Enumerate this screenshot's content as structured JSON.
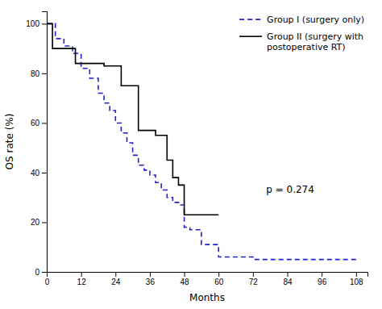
{
  "chart_data": {
    "type": "line",
    "x_label": "Months",
    "y_label": "OS rate (%)",
    "series": [
      {
        "name": "Group I (surgery only)",
        "color": "#2222CC",
        "line_style": "dashed",
        "x": [
          0,
          0,
          3,
          3,
          6,
          6,
          9,
          9,
          12,
          12,
          15,
          15,
          18,
          18,
          20,
          20,
          22,
          22,
          24,
          24,
          26,
          26,
          28,
          28,
          30,
          30,
          32,
          32,
          34,
          34,
          36,
          36,
          38,
          38,
          40,
          40,
          42,
          42,
          44,
          44,
          46,
          46,
          48,
          48,
          50,
          50,
          54,
          54,
          60,
          60,
          72,
          72,
          84,
          84,
          96,
          96,
          108
        ],
        "values": [
          100,
          100,
          100,
          94,
          94,
          91,
          91,
          88,
          88,
          82,
          82,
          78,
          78,
          72,
          72,
          68,
          68,
          65,
          65,
          60,
          60,
          56,
          56,
          52,
          52,
          47,
          47,
          43,
          43,
          41,
          41,
          39,
          39,
          36,
          36,
          33,
          33,
          30,
          30,
          28,
          28,
          27,
          27,
          18,
          18,
          17,
          17,
          11,
          11,
          6,
          6,
          5,
          5,
          5,
          5,
          5,
          5
        ]
      },
      {
        "name": "Group II (surgery with\npostoperative RT)",
        "color": "#000000",
        "line_style": "solid",
        "x": [
          0,
          0,
          2,
          2,
          10,
          10,
          20,
          20,
          26,
          26,
          32,
          32,
          38,
          38,
          42,
          42,
          44,
          44,
          46,
          46,
          48,
          48,
          60,
          60
        ],
        "values": [
          100,
          100,
          100,
          90,
          90,
          84,
          84,
          83,
          83,
          75,
          75,
          57,
          57,
          55,
          55,
          45,
          45,
          38,
          38,
          35,
          35,
          23,
          23,
          23
        ]
      }
    ],
    "annotations": [
      {
        "text": "p = 0.274",
        "x": 85,
        "y": 33
      }
    ],
    "xlim": [
      0,
      112
    ],
    "ylim": [
      0,
      105
    ],
    "xticks": [
      0,
      12,
      24,
      36,
      48,
      60,
      72,
      84,
      96,
      108
    ],
    "yticks": [
      0,
      20,
      40,
      60,
      80,
      100
    ],
    "legend": "upper right",
    "grid": false
  }
}
